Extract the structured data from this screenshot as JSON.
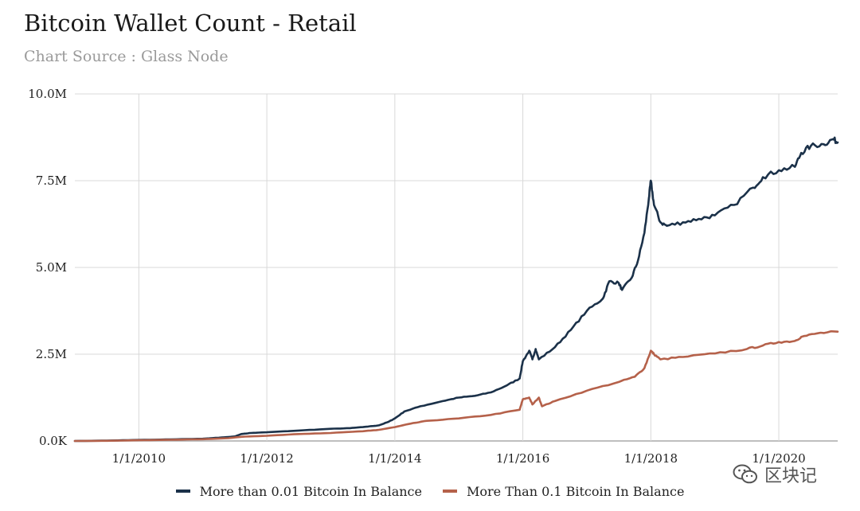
{
  "colors": {
    "series1": "#1b3149",
    "series2": "#b5614a",
    "grid": "#d8d8d8",
    "axis": "#aaaaaa"
  },
  "watermark": {
    "icon": "wechat-icon",
    "text": "区块记"
  },
  "chart_data": {
    "type": "line",
    "title": "Bitcoin Wallet Count - Retail",
    "subtitle": "Chart Source : Glass Node",
    "xlabel": "",
    "ylabel": "",
    "legend_position": "bottom",
    "x_range": [
      2009.0,
      2020.92
    ],
    "ylim": [
      0,
      10000000
    ],
    "y_ticks": [
      {
        "value": 0,
        "label": "0.0K"
      },
      {
        "value": 2500000,
        "label": "2.5M"
      },
      {
        "value": 5000000,
        "label": "5.0M"
      },
      {
        "value": 7500000,
        "label": "7.5M"
      },
      {
        "value": 10000000,
        "label": "10.0M"
      }
    ],
    "x_ticks": [
      {
        "value": 2010,
        "label": "1/1/2010"
      },
      {
        "value": 2012,
        "label": "1/1/2012"
      },
      {
        "value": 2014,
        "label": "1/1/2014"
      },
      {
        "value": 2016,
        "label": "1/1/2016"
      },
      {
        "value": 2018,
        "label": "1/1/2018"
      },
      {
        "value": 2020,
        "label": "1/1/2020"
      }
    ],
    "series": [
      {
        "name": "More than 0.01 Bitcoin In Balance",
        "color": "#1b3149",
        "points": [
          [
            2009.0,
            0
          ],
          [
            2009.5,
            10000
          ],
          [
            2010.0,
            30000
          ],
          [
            2010.5,
            45000
          ],
          [
            2011.0,
            65000
          ],
          [
            2011.3,
            100000
          ],
          [
            2011.5,
            130000
          ],
          [
            2011.6,
            200000
          ],
          [
            2011.75,
            230000
          ],
          [
            2012.0,
            250000
          ],
          [
            2012.5,
            300000
          ],
          [
            2013.0,
            350000
          ],
          [
            2013.3,
            370000
          ],
          [
            2013.5,
            400000
          ],
          [
            2013.75,
            450000
          ],
          [
            2013.9,
            550000
          ],
          [
            2014.0,
            650000
          ],
          [
            2014.15,
            850000
          ],
          [
            2014.4,
            1000000
          ],
          [
            2014.75,
            1150000
          ],
          [
            2015.0,
            1250000
          ],
          [
            2015.25,
            1300000
          ],
          [
            2015.5,
            1400000
          ],
          [
            2015.75,
            1600000
          ],
          [
            2015.95,
            1800000
          ],
          [
            2016.0,
            2300000
          ],
          [
            2016.1,
            2600000
          ],
          [
            2016.15,
            2350000
          ],
          [
            2016.2,
            2650000
          ],
          [
            2016.25,
            2350000
          ],
          [
            2016.5,
            2700000
          ],
          [
            2016.75,
            3200000
          ],
          [
            2017.0,
            3750000
          ],
          [
            2017.25,
            4100000
          ],
          [
            2017.35,
            4600000
          ],
          [
            2017.5,
            4550000
          ],
          [
            2017.55,
            4350000
          ],
          [
            2017.7,
            4700000
          ],
          [
            2017.8,
            5200000
          ],
          [
            2017.9,
            6000000
          ],
          [
            2017.97,
            7000000
          ],
          [
            2018.0,
            7500000
          ],
          [
            2018.05,
            6800000
          ],
          [
            2018.15,
            6300000
          ],
          [
            2018.25,
            6200000
          ],
          [
            2018.5,
            6300000
          ],
          [
            2018.75,
            6400000
          ],
          [
            2019.0,
            6500000
          ],
          [
            2019.3,
            6800000
          ],
          [
            2019.6,
            7300000
          ],
          [
            2019.75,
            7600000
          ],
          [
            2020.0,
            7800000
          ],
          [
            2020.25,
            7900000
          ],
          [
            2020.35,
            8300000
          ],
          [
            2020.5,
            8500000
          ],
          [
            2020.7,
            8550000
          ],
          [
            2020.85,
            8700000
          ],
          [
            2020.92,
            8600000
          ]
        ]
      },
      {
        "name": "More Than 0.1 Bitcoin In Balance",
        "color": "#b5614a",
        "points": [
          [
            2009.0,
            0
          ],
          [
            2009.5,
            5000
          ],
          [
            2010.0,
            20000
          ],
          [
            2010.5,
            35000
          ],
          [
            2011.0,
            50000
          ],
          [
            2011.4,
            80000
          ],
          [
            2011.6,
            120000
          ],
          [
            2012.0,
            150000
          ],
          [
            2012.5,
            200000
          ],
          [
            2013.0,
            230000
          ],
          [
            2013.5,
            280000
          ],
          [
            2013.75,
            320000
          ],
          [
            2014.0,
            400000
          ],
          [
            2014.25,
            500000
          ],
          [
            2014.5,
            580000
          ],
          [
            2015.0,
            650000
          ],
          [
            2015.5,
            750000
          ],
          [
            2015.95,
            900000
          ],
          [
            2016.0,
            1200000
          ],
          [
            2016.1,
            1250000
          ],
          [
            2016.15,
            1050000
          ],
          [
            2016.25,
            1250000
          ],
          [
            2016.3,
            1000000
          ],
          [
            2016.5,
            1150000
          ],
          [
            2017.0,
            1450000
          ],
          [
            2017.5,
            1700000
          ],
          [
            2017.75,
            1850000
          ],
          [
            2017.9,
            2100000
          ],
          [
            2018.0,
            2600000
          ],
          [
            2018.05,
            2500000
          ],
          [
            2018.15,
            2350000
          ],
          [
            2018.5,
            2420000
          ],
          [
            2019.0,
            2520000
          ],
          [
            2019.5,
            2650000
          ],
          [
            2019.75,
            2750000
          ],
          [
            2020.0,
            2850000
          ],
          [
            2020.25,
            2880000
          ],
          [
            2020.35,
            3000000
          ],
          [
            2020.6,
            3100000
          ],
          [
            2020.92,
            3150000
          ]
        ]
      }
    ]
  }
}
